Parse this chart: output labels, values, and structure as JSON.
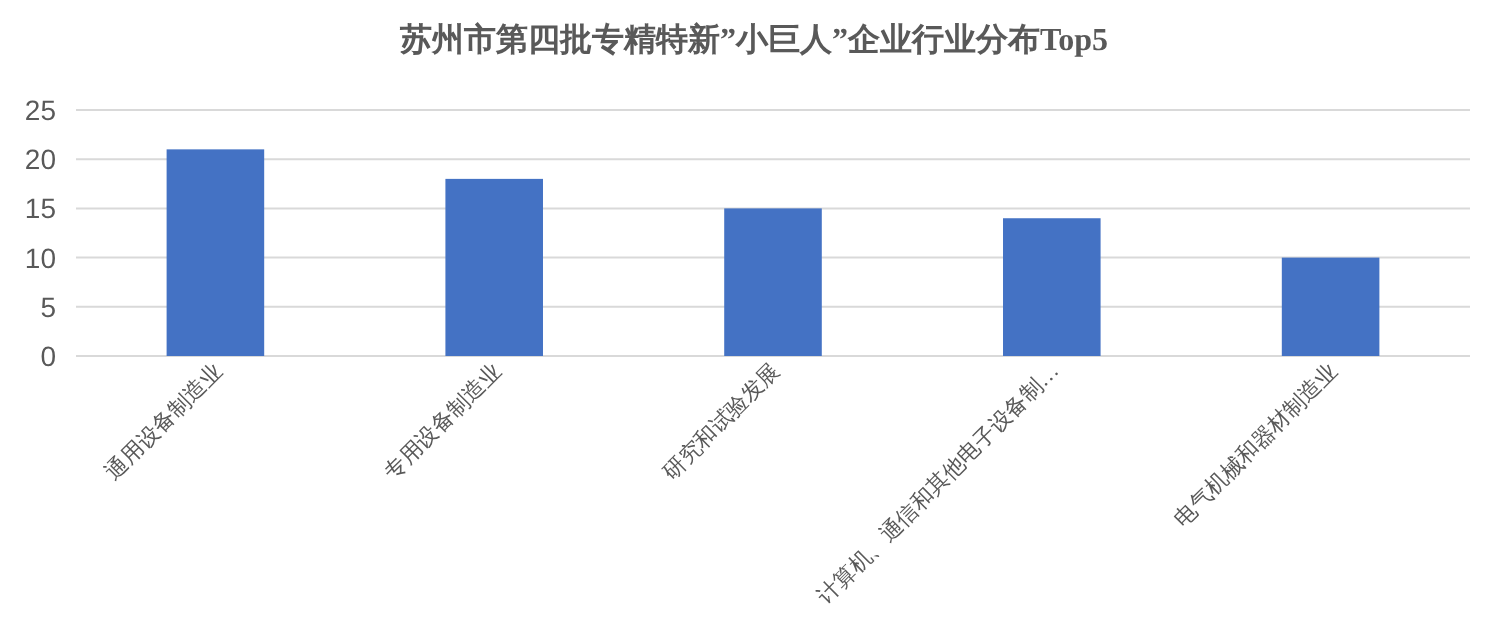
{
  "chart_data": {
    "type": "bar",
    "title": "苏州市第四批专精特新”小巨人”企业行业分布Top5",
    "categories": [
      "通用设备制造业",
      "专用设备制造业",
      "研究和试验发展",
      "计算机、通信和其他电子设备制…",
      "电气机械和器材制造业"
    ],
    "values": [
      21,
      18,
      15,
      14,
      10
    ],
    "color": "#4472c4",
    "ylim": [
      0,
      25
    ],
    "yticks": [
      0,
      5,
      10,
      15,
      20,
      25
    ],
    "grid": "y"
  }
}
